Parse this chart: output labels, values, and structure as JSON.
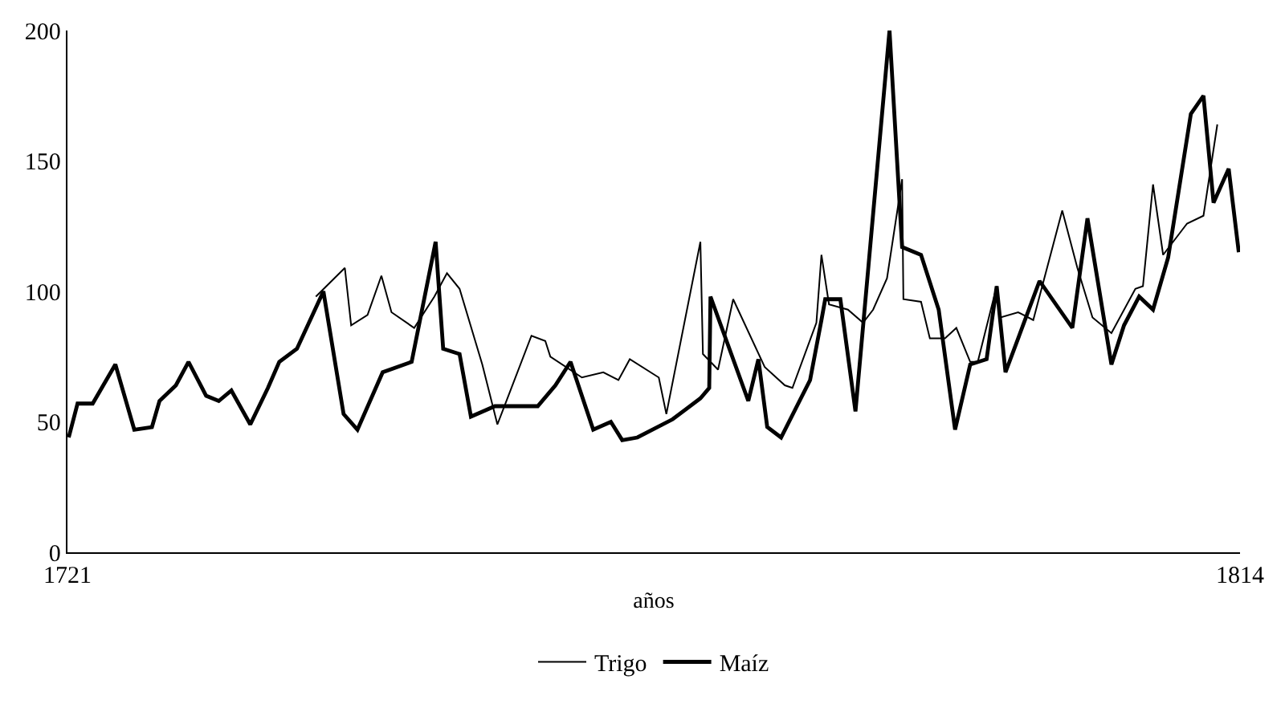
{
  "chart_data": {
    "type": "line",
    "xlabel": "años",
    "xlim": [
      1721,
      1814
    ],
    "xticks": [
      1721,
      1814
    ],
    "ylim": [
      0,
      200
    ],
    "yticks": [
      0,
      50,
      100,
      150,
      200
    ],
    "legend": "bottom",
    "marker": "none",
    "line_style": "solid",
    "series": [
      {
        "name": "Trigo",
        "color": "#000000",
        "x": [
          1740.7,
          1743.0,
          1743.5,
          1744.8,
          1745.9,
          1746.7,
          1748.5,
          1750.1,
          1751.1,
          1752.1,
          1753.9,
          1755.1,
          1757.8,
          1758.9,
          1759.3,
          1761.8,
          1763.5,
          1764.7,
          1765.6,
          1767.9,
          1768.5,
          1771.2,
          1771.4,
          1772.6,
          1773.8,
          1776.3,
          1777.9,
          1778.5,
          1780.4,
          1780.8,
          1781.4,
          1782.9,
          1784.1,
          1784.9,
          1786.0,
          1787.2,
          1787.3,
          1788.7,
          1789.4,
          1790.6,
          1791.5,
          1792.6,
          1793.2,
          1794.7,
          1795.0,
          1796.4,
          1797.6,
          1799.9,
          1801.1,
          1802.3,
          1803.8,
          1805.7,
          1806.3,
          1807.1,
          1807.9,
          1809.8,
          1811.1,
          1812.2
        ],
        "values": [
          98,
          109,
          87,
          91,
          106,
          92,
          86,
          98,
          107,
          101,
          72,
          49,
          83,
          81,
          75,
          67,
          69,
          66,
          74,
          67,
          53,
          119,
          76,
          70,
          97,
          71,
          64,
          63,
          88,
          114,
          95,
          93,
          88,
          93,
          105,
          143,
          97,
          96,
          82,
          82,
          86,
          73,
          73,
          102,
          90,
          92,
          89,
          131,
          109,
          90,
          84,
          101,
          102,
          141,
          114,
          126,
          129,
          164
        ]
      },
      {
        "name": "Maíz",
        "color": "#000000",
        "x": [
          1721.1,
          1721.8,
          1723.0,
          1724.8,
          1726.3,
          1727.7,
          1728.3,
          1729.6,
          1730.6,
          1732.0,
          1733.0,
          1734.0,
          1735.5,
          1736.9,
          1737.8,
          1739.2,
          1741.3,
          1742.9,
          1744.0,
          1746.0,
          1748.3,
          1750.2,
          1750.8,
          1752.1,
          1753.0,
          1754.9,
          1758.3,
          1759.7,
          1760.9,
          1762.7,
          1764.1,
          1765.0,
          1766.2,
          1769.0,
          1771.2,
          1771.9,
          1772.0,
          1775.0,
          1775.8,
          1776.5,
          1777.6,
          1779.9,
          1780.8,
          1781.1,
          1782.3,
          1783.5,
          1786.2,
          1787.2,
          1788.7,
          1790.1,
          1791.4,
          1792.6,
          1793.9,
          1794.7,
          1795.4,
          1798.1,
          1800.7,
          1801.9,
          1803.8,
          1804.8,
          1806.0,
          1807.1,
          1808.3,
          1810.1,
          1811.1,
          1811.9,
          1813.1,
          1813.9
        ],
        "values": [
          44,
          57,
          57,
          72,
          47,
          48,
          58,
          64,
          73,
          60,
          58,
          62,
          49,
          63,
          73,
          78,
          100,
          53,
          47,
          69,
          73,
          119,
          78,
          76,
          52,
          56,
          56,
          64,
          73,
          47,
          50,
          43,
          44,
          51,
          59,
          63,
          98,
          58,
          74,
          48,
          44,
          66,
          89,
          97,
          97,
          54,
          200,
          117,
          114,
          93,
          47,
          72,
          74,
          102,
          69,
          104,
          86,
          128,
          72,
          87,
          98,
          93,
          113,
          168,
          175,
          134,
          147,
          115
        ]
      }
    ]
  }
}
